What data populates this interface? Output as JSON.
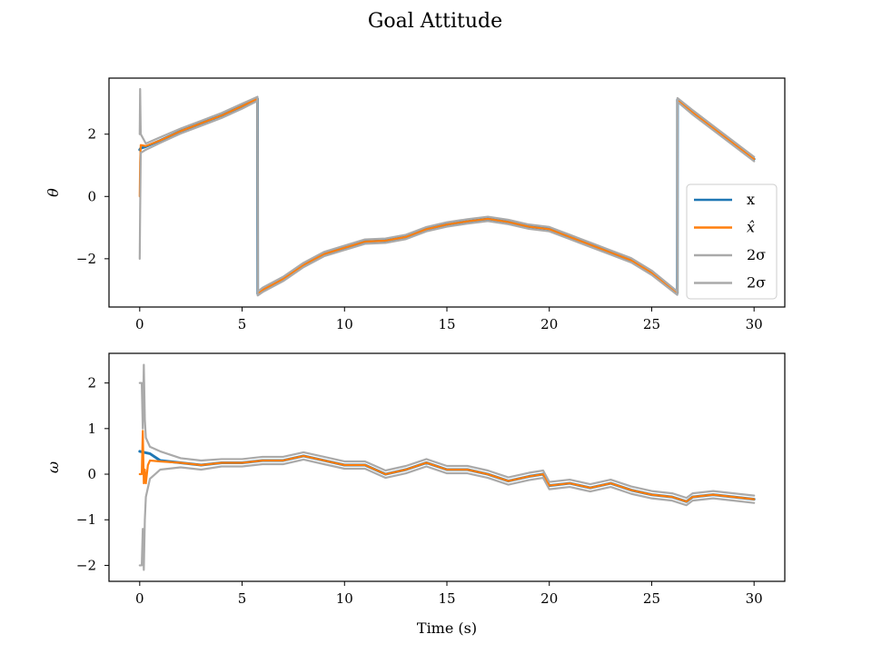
{
  "figure": {
    "title": "Goal Attitude"
  },
  "chart_data": [
    {
      "type": "line",
      "ylabel": "θ",
      "xlabel": "",
      "xlim": [
        -1.5,
        31.5
      ],
      "ylim": [
        -3.55,
        3.8
      ],
      "xticks": [
        0,
        5,
        10,
        15,
        20,
        25,
        30
      ],
      "yticks": [
        -2,
        0,
        2
      ],
      "ytick_labels": [
        "−2",
        "0",
        "2"
      ],
      "legend": {
        "placement": "lower right",
        "entries": [
          "x",
          "x̂",
          "2σ",
          "2σ"
        ]
      },
      "grid": false,
      "series": [
        {
          "name": "x",
          "color": "#1f77b4",
          "x": [
            0,
            0.05,
            0.3,
            1,
            2,
            3,
            4,
            5,
            5.75,
            5.76,
            6,
            7,
            8,
            9,
            10,
            11,
            12,
            13,
            14,
            15,
            16,
            17,
            18,
            19,
            20,
            21,
            22,
            23,
            24,
            25,
            26.25,
            26.26,
            27,
            28,
            29,
            30
          ],
          "y": [
            1.5,
            1.55,
            1.6,
            1.8,
            2.1,
            2.35,
            2.6,
            2.9,
            3.14,
            -3.12,
            -3.0,
            -2.65,
            -2.2,
            -1.85,
            -1.65,
            -1.45,
            -1.42,
            -1.3,
            -1.05,
            -0.9,
            -0.8,
            -0.72,
            -0.82,
            -0.97,
            -1.05,
            -1.3,
            -1.55,
            -1.8,
            -2.05,
            -2.45,
            -3.1,
            3.1,
            2.7,
            2.2,
            1.7,
            1.2
          ]
        },
        {
          "name": "x̂",
          "color": "#ff7f0e",
          "x": [
            0,
            0.02,
            0.05,
            0.3,
            1,
            2,
            3,
            4,
            5,
            5.75,
            5.76,
            6,
            7,
            8,
            9,
            10,
            11,
            12,
            13,
            14,
            15,
            16,
            17,
            18,
            19,
            20,
            21,
            22,
            23,
            24,
            25,
            26.25,
            26.26,
            27,
            28,
            29,
            30
          ],
          "y": [
            0,
            1.1,
            1.65,
            1.62,
            1.8,
            2.1,
            2.35,
            2.6,
            2.9,
            3.14,
            -3.12,
            -3.0,
            -2.65,
            -2.2,
            -1.85,
            -1.65,
            -1.45,
            -1.42,
            -1.3,
            -1.05,
            -0.9,
            -0.8,
            -0.72,
            -0.82,
            -0.97,
            -1.05,
            -1.3,
            -1.55,
            -1.8,
            -2.05,
            -2.45,
            -3.1,
            3.1,
            2.7,
            2.2,
            1.7,
            1.2
          ]
        },
        {
          "name": "2σ",
          "color": "#aaaaaa",
          "x": [
            0,
            0.02,
            0.05,
            0.3,
            1,
            2,
            3,
            4,
            5,
            5.75,
            5.76,
            6,
            7,
            8,
            9,
            10,
            11,
            12,
            13,
            14,
            15,
            16,
            17,
            18,
            19,
            20,
            21,
            22,
            23,
            24,
            25,
            26.25,
            26.26,
            27,
            28,
            29,
            30
          ],
          "y": [
            2.0,
            3.45,
            2.0,
            1.7,
            1.9,
            2.18,
            2.43,
            2.68,
            2.98,
            3.2,
            -3.06,
            -2.93,
            -2.58,
            -2.13,
            -1.78,
            -1.58,
            -1.38,
            -1.35,
            -1.23,
            -0.98,
            -0.83,
            -0.73,
            -0.65,
            -0.75,
            -0.9,
            -0.98,
            -1.23,
            -1.48,
            -1.73,
            -1.98,
            -2.38,
            -3.05,
            3.16,
            2.77,
            2.27,
            1.77,
            1.27
          ]
        },
        {
          "name": "2σ",
          "color": "#aaaaaa",
          "x": [
            0,
            0.02,
            0.05,
            0.3,
            1,
            2,
            3,
            4,
            5,
            5.75,
            5.76,
            6,
            7,
            8,
            9,
            10,
            11,
            12,
            13,
            14,
            15,
            16,
            17,
            18,
            19,
            20,
            21,
            22,
            23,
            24,
            25,
            26.25,
            26.26,
            27,
            28,
            29,
            30
          ],
          "y": [
            -2.0,
            -0.5,
            1.4,
            1.5,
            1.72,
            2.02,
            2.27,
            2.52,
            2.82,
            3.07,
            -3.18,
            -3.07,
            -2.72,
            -2.27,
            -1.92,
            -1.72,
            -1.52,
            -1.49,
            -1.37,
            -1.12,
            -0.97,
            -0.87,
            -0.79,
            -0.89,
            -1.04,
            -1.12,
            -1.37,
            -1.62,
            -1.87,
            -2.12,
            -2.52,
            -3.16,
            3.04,
            2.63,
            2.13,
            1.63,
            1.13
          ]
        }
      ]
    },
    {
      "type": "line",
      "ylabel": "ω",
      "xlabel": "Time (s)",
      "xlim": [
        -1.5,
        31.5
      ],
      "ylim": [
        -2.35,
        2.65
      ],
      "xticks": [
        0,
        5,
        10,
        15,
        20,
        25,
        30
      ],
      "yticks": [
        -2,
        -1,
        0,
        1,
        2
      ],
      "ytick_labels": [
        "−2",
        "−1",
        "0",
        "1",
        "2"
      ],
      "grid": false,
      "series": [
        {
          "name": "x",
          "color": "#1f77b4",
          "x": [
            0,
            0.5,
            1,
            2,
            3,
            4,
            5,
            6,
            7,
            8,
            9,
            10,
            11,
            12,
            13,
            14,
            15,
            16,
            17,
            18,
            19,
            19.7,
            20,
            21,
            22,
            23,
            24,
            25,
            26,
            26.7,
            27,
            28,
            29,
            30
          ],
          "y": [
            0.5,
            0.45,
            0.3,
            0.25,
            0.2,
            0.25,
            0.25,
            0.3,
            0.3,
            0.4,
            0.3,
            0.2,
            0.2,
            0.0,
            0.1,
            0.25,
            0.1,
            0.1,
            0.0,
            -0.15,
            -0.05,
            0.0,
            -0.25,
            -0.2,
            -0.3,
            -0.2,
            -0.35,
            -0.45,
            -0.5,
            -0.6,
            -0.5,
            -0.45,
            -0.5,
            -0.55
          ]
        },
        {
          "name": "x̂",
          "color": "#ff7f0e",
          "x": [
            0,
            0.1,
            0.15,
            0.2,
            0.25,
            0.3,
            0.4,
            0.5,
            1,
            2,
            3,
            4,
            5,
            6,
            7,
            8,
            9,
            10,
            11,
            12,
            13,
            14,
            15,
            16,
            17,
            18,
            19,
            19.7,
            20,
            21,
            22,
            23,
            24,
            25,
            26,
            26.7,
            27,
            28,
            29,
            30
          ],
          "y": [
            0.0,
            0.0,
            0.95,
            -0.2,
            0.1,
            -0.2,
            0.2,
            0.3,
            0.28,
            0.25,
            0.2,
            0.25,
            0.25,
            0.3,
            0.3,
            0.4,
            0.3,
            0.2,
            0.2,
            0.0,
            0.1,
            0.25,
            0.1,
            0.1,
            0.0,
            -0.15,
            -0.05,
            0.0,
            -0.25,
            -0.2,
            -0.3,
            -0.2,
            -0.35,
            -0.45,
            -0.5,
            -0.6,
            -0.5,
            -0.45,
            -0.5,
            -0.55
          ]
        },
        {
          "name": "2σ",
          "color": "#aaaaaa",
          "x": [
            0,
            0.1,
            0.15,
            0.2,
            0.25,
            0.3,
            0.5,
            1,
            2,
            3,
            4,
            5,
            6,
            7,
            8,
            9,
            10,
            11,
            12,
            13,
            14,
            15,
            16,
            17,
            18,
            19,
            19.7,
            20,
            21,
            22,
            23,
            24,
            25,
            26,
            26.7,
            27,
            28,
            29,
            30
          ],
          "y": [
            2.0,
            2.0,
            1.0,
            2.4,
            1.2,
            0.8,
            0.6,
            0.5,
            0.35,
            0.3,
            0.33,
            0.33,
            0.38,
            0.38,
            0.48,
            0.38,
            0.28,
            0.28,
            0.08,
            0.18,
            0.33,
            0.18,
            0.18,
            0.08,
            -0.07,
            0.03,
            0.08,
            -0.17,
            -0.12,
            -0.22,
            -0.12,
            -0.27,
            -0.37,
            -0.42,
            -0.52,
            -0.42,
            -0.37,
            -0.42,
            -0.47
          ]
        },
        {
          "name": "2σ",
          "color": "#aaaaaa",
          "x": [
            0,
            0.1,
            0.15,
            0.2,
            0.25,
            0.3,
            0.5,
            1,
            2,
            3,
            4,
            5,
            6,
            7,
            8,
            9,
            10,
            11,
            12,
            13,
            14,
            15,
            16,
            17,
            18,
            19,
            19.7,
            20,
            21,
            22,
            23,
            24,
            25,
            26,
            26.7,
            27,
            28,
            29,
            30
          ],
          "y": [
            -2.0,
            -2.0,
            -1.2,
            -2.1,
            -1.0,
            -0.5,
            -0.1,
            0.1,
            0.15,
            0.1,
            0.17,
            0.17,
            0.22,
            0.22,
            0.32,
            0.22,
            0.12,
            0.12,
            -0.08,
            0.02,
            0.17,
            0.02,
            0.02,
            -0.08,
            -0.23,
            -0.13,
            -0.08,
            -0.33,
            -0.28,
            -0.38,
            -0.28,
            -0.43,
            -0.53,
            -0.58,
            -0.68,
            -0.58,
            -0.53,
            -0.58,
            -0.63
          ]
        }
      ]
    }
  ]
}
